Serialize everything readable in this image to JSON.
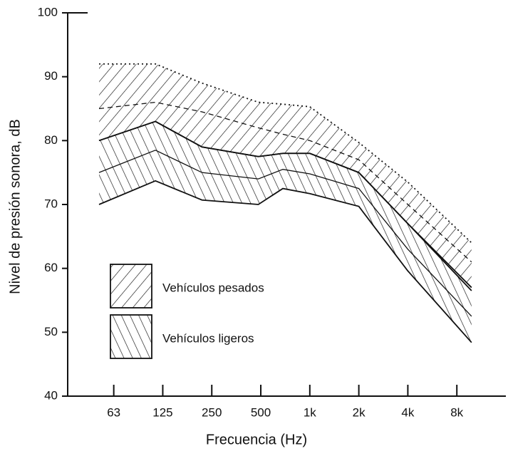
{
  "chart_data": {
    "type": "band",
    "x_label": "Frecuencia (Hz)",
    "y_label": "Nivel de presión sonora, dB",
    "xlim": [
      -0.94,
      8.0
    ],
    "xticks": [
      {
        "value": 0,
        "label": "63"
      },
      {
        "value": 1,
        "label": "125"
      },
      {
        "value": 2,
        "label": "250"
      },
      {
        "value": 3,
        "label": "500"
      },
      {
        "value": 4,
        "label": "1k"
      },
      {
        "value": 5,
        "label": "2k"
      },
      {
        "value": 6,
        "label": "4k"
      },
      {
        "value": 7,
        "label": "8k"
      }
    ],
    "ylim": [
      40,
      100
    ],
    "yticks": [
      40,
      50,
      60,
      70,
      80,
      90,
      100
    ],
    "legend": "lower left",
    "x": [
      -0.3,
      0.85,
      1.8,
      2.95,
      3.45,
      4,
      5,
      6,
      7.3
    ],
    "series": [
      {
        "name": "Vehículos pesados",
        "color": "#111",
        "hatch": "forward",
        "border": "dotted",
        "median_style": "dashed",
        "upper": [
          92,
          92,
          89,
          86,
          85.7,
          85.3,
          79.7,
          73.5,
          64
        ],
        "median": [
          85,
          86,
          84.5,
          82,
          81,
          80,
          77,
          70,
          61
        ],
        "lower": [
          80,
          83,
          79,
          77.5,
          78,
          78,
          75,
          67,
          57
        ]
      },
      {
        "name": "Vehículos ligeros",
        "color": "#111",
        "hatch": "backward",
        "border": "solid",
        "median_style": "solid",
        "upper": [
          80,
          83,
          79,
          77.5,
          78,
          78,
          75,
          67,
          56.5
        ],
        "median": [
          75,
          78.5,
          75,
          74,
          75.5,
          74.8,
          72.5,
          63,
          52.5
        ],
        "lower": [
          70,
          73.7,
          70.7,
          70,
          72.5,
          71.7,
          69.7,
          59.6,
          48.4
        ]
      }
    ]
  }
}
